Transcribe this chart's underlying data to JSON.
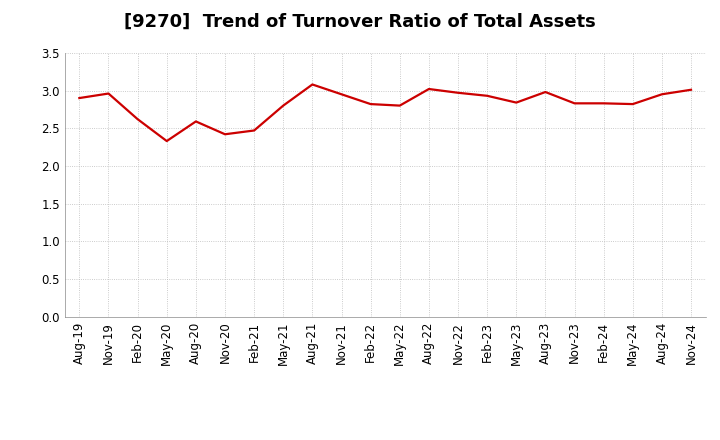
{
  "title": "[9270]  Trend of Turnover Ratio of Total Assets",
  "x_labels": [
    "Aug-19",
    "Nov-19",
    "Feb-20",
    "May-20",
    "Aug-20",
    "Nov-20",
    "Feb-21",
    "May-21",
    "Aug-21",
    "Nov-21",
    "Feb-22",
    "May-22",
    "Aug-22",
    "Nov-22",
    "Feb-23",
    "May-23",
    "Aug-23",
    "Nov-23",
    "Feb-24",
    "May-24",
    "Aug-24",
    "Nov-24"
  ],
  "y_values": [
    2.9,
    2.96,
    2.62,
    2.33,
    2.59,
    2.42,
    2.47,
    2.8,
    3.08,
    2.95,
    2.82,
    2.8,
    3.02,
    2.97,
    2.93,
    2.84,
    2.98,
    2.83,
    2.83,
    2.82,
    2.95,
    3.01
  ],
  "line_color": "#cc0000",
  "background_color": "#ffffff",
  "plot_bg_color": "#ffffff",
  "grid_color": "#bbbbbb",
  "ylim": [
    0.0,
    3.5
  ],
  "yticks": [
    0.0,
    0.5,
    1.0,
    1.5,
    2.0,
    2.5,
    3.0,
    3.5
  ],
  "title_fontsize": 13,
  "tick_fontsize": 8.5,
  "line_width": 1.6
}
